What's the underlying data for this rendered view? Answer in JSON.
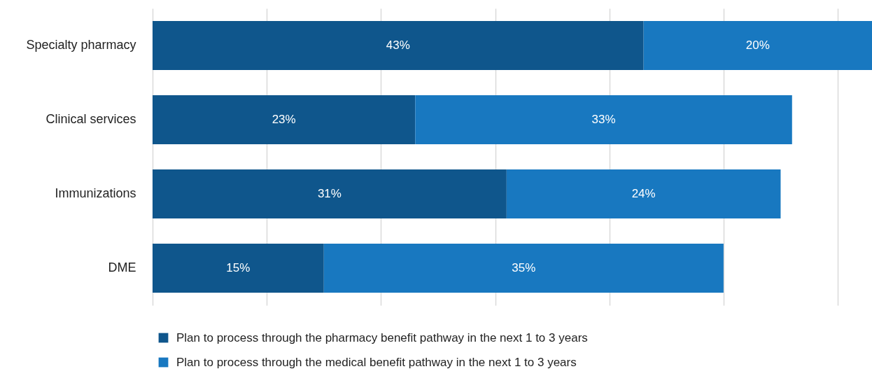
{
  "chart_data": {
    "type": "bar",
    "orientation": "horizontal",
    "stacked": true,
    "categories": [
      "Specialty pharmacy",
      "Clinical services",
      "Immunizations",
      "DME"
    ],
    "series": [
      {
        "name": "Plan to process through the pharmacy benefit pathway in the next 1 to 3 years",
        "color": "#0f568c",
        "values": [
          43,
          23,
          31,
          15
        ],
        "value_labels": [
          "43%",
          "23%",
          "31%",
          "15%"
        ]
      },
      {
        "name": "Plan to process through the medical benefit pathway in the next 1 to 3 years",
        "color": "#1878c0",
        "values": [
          20,
          33,
          24,
          35
        ],
        "value_labels": [
          "20%",
          "33%",
          "24%",
          "35%"
        ]
      }
    ],
    "tick_labels": "y",
    "grid": "x",
    "legend": "bottom"
  }
}
